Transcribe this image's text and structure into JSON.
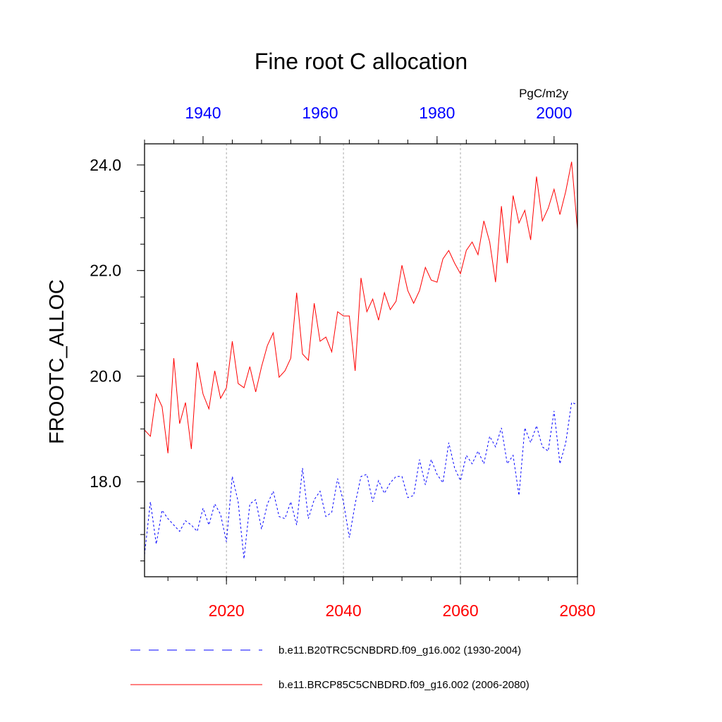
{
  "chart_data": {
    "type": "line",
    "title": "Fine root C allocation",
    "ylabel": "FROOTC_ALLOC",
    "units": "PgC/m2y",
    "ylim": [
      16.2,
      24.4
    ],
    "yticks": [
      18.0,
      20.0,
      22.0,
      24.0
    ],
    "ytick_labels": [
      "18.0",
      "20.0",
      "22.0",
      "24.0"
    ],
    "y_minor_step": 0.5,
    "grid": "dashed vertical lines at bottom-axis major ticks",
    "x_bottom": {
      "range": [
        2006,
        2080
      ],
      "ticks": [
        2020,
        2040,
        2060,
        2080
      ],
      "tick_labels": [
        "2020",
        "2040",
        "2060",
        "2080"
      ],
      "minor_step": 5,
      "color": "#ff0000"
    },
    "x_top": {
      "range": [
        1930,
        2004
      ],
      "ticks": [
        1940,
        1960,
        1980,
        2000
      ],
      "tick_labels": [
        "1940",
        "1960",
        "1980",
        "2000"
      ],
      "minor_step": 5,
      "color": "#0000ff"
    },
    "legend_position": "bottom",
    "series": [
      {
        "name": "b.e11.B20TRC5CNBDRD.f09_g16.002 (1930-2004)",
        "color": "#0000ff",
        "style": "dashed",
        "axis": "top",
        "x": [
          1930,
          1931,
          1932,
          1933,
          1934,
          1935,
          1936,
          1937,
          1938,
          1939,
          1940,
          1941,
          1942,
          1943,
          1944,
          1945,
          1946,
          1947,
          1948,
          1949,
          1950,
          1951,
          1952,
          1953,
          1954,
          1955,
          1956,
          1957,
          1958,
          1959,
          1960,
          1961,
          1962,
          1963,
          1964,
          1965,
          1966,
          1967,
          1968,
          1969,
          1970,
          1971,
          1972,
          1973,
          1974,
          1975,
          1976,
          1977,
          1978,
          1979,
          1980,
          1981,
          1982,
          1983,
          1984,
          1985,
          1986,
          1987,
          1988,
          1989,
          1990,
          1991,
          1992,
          1993,
          1994,
          1995,
          1996,
          1997,
          1998,
          1999,
          2000,
          2001,
          2002,
          2003,
          2004
        ],
        "values": [
          16.62,
          17.62,
          16.82,
          17.46,
          17.3,
          17.18,
          17.06,
          17.26,
          17.18,
          17.06,
          17.5,
          17.18,
          17.58,
          17.38,
          16.86,
          18.1,
          17.62,
          16.54,
          17.58,
          17.66,
          17.1,
          17.58,
          17.82,
          17.34,
          17.3,
          17.62,
          17.18,
          18.26,
          17.3,
          17.66,
          17.82,
          17.34,
          17.42,
          18.06,
          17.62,
          16.94,
          17.58,
          18.1,
          18.14,
          17.62,
          18.02,
          17.78,
          17.98,
          18.1,
          18.1,
          17.7,
          17.74,
          18.42,
          17.94,
          18.42,
          18.14,
          17.98,
          18.74,
          18.26,
          18.02,
          18.5,
          18.34,
          18.58,
          18.34,
          18.86,
          18.66,
          19.02,
          18.34,
          18.5,
          17.74,
          19.02,
          18.74,
          19.06,
          18.66,
          18.58,
          19.34,
          18.34,
          18.74,
          19.5,
          19.46
        ]
      },
      {
        "name": "b.e11.BRCP85C5CNBDRD.f09_g16.002 (2006-2080)",
        "color": "#ff0000",
        "style": "solid",
        "axis": "bottom",
        "x": [
          2006,
          2007,
          2008,
          2009,
          2010,
          2011,
          2012,
          2013,
          2014,
          2015,
          2016,
          2017,
          2018,
          2019,
          2020,
          2021,
          2022,
          2023,
          2024,
          2025,
          2026,
          2027,
          2028,
          2029,
          2030,
          2031,
          2032,
          2033,
          2034,
          2035,
          2036,
          2037,
          2038,
          2039,
          2040,
          2041,
          2042,
          2043,
          2044,
          2045,
          2046,
          2047,
          2048,
          2049,
          2050,
          2051,
          2052,
          2053,
          2054,
          2055,
          2056,
          2057,
          2058,
          2059,
          2060,
          2061,
          2062,
          2063,
          2064,
          2065,
          2066,
          2067,
          2068,
          2069,
          2070,
          2071,
          2072,
          2073,
          2074,
          2075,
          2076,
          2077,
          2078,
          2079,
          2080
        ],
        "values": [
          18.98,
          18.86,
          19.66,
          19.42,
          18.54,
          20.34,
          19.1,
          19.5,
          18.62,
          20.26,
          19.66,
          19.38,
          20.1,
          19.58,
          19.78,
          20.66,
          19.86,
          19.78,
          20.18,
          19.7,
          20.18,
          20.58,
          20.82,
          19.98,
          20.1,
          20.34,
          21.58,
          20.42,
          20.3,
          21.38,
          20.66,
          20.74,
          20.46,
          21.22,
          21.14,
          21.14,
          20.1,
          21.86,
          21.22,
          21.46,
          21.06,
          21.58,
          21.26,
          21.42,
          22.1,
          21.62,
          21.38,
          21.62,
          22.06,
          21.82,
          21.78,
          22.22,
          22.38,
          22.14,
          21.94,
          22.38,
          22.54,
          22.3,
          22.94,
          22.54,
          21.78,
          23.22,
          22.14,
          23.42,
          22.9,
          23.14,
          22.58,
          23.78,
          22.94,
          23.18,
          23.54,
          23.06,
          23.5,
          24.06,
          22.78
        ]
      }
    ]
  }
}
